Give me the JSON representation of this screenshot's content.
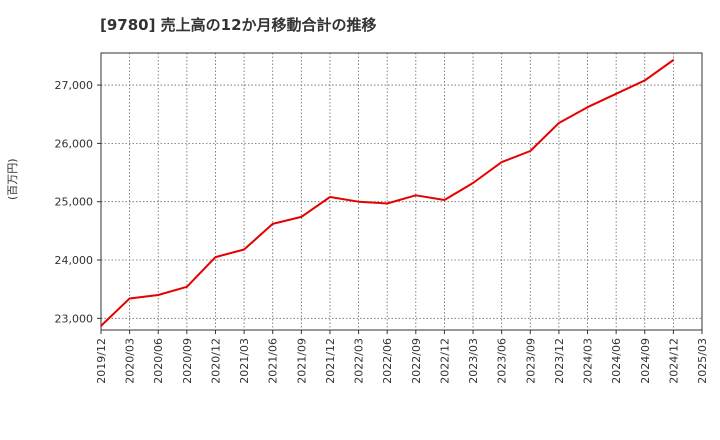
{
  "chart_data": {
    "type": "line",
    "title": "[9780]  売上高の12か月移動合計の推移",
    "xlabel": "",
    "ylabel": "(百万円)",
    "ylim": [
      22800,
      27550
    ],
    "yticks": [
      23000,
      24000,
      25000,
      26000,
      27000
    ],
    "ytick_labels": [
      "23,000",
      "24,000",
      "25,000",
      "26,000",
      "27,000"
    ],
    "xtick_labels": [
      "2019/12",
      "2020/03",
      "2020/06",
      "2020/09",
      "2020/12",
      "2021/03",
      "2021/06",
      "2021/09",
      "2021/12",
      "2022/03",
      "2022/06",
      "2022/09",
      "2022/12",
      "2023/03",
      "2023/06",
      "2023/09",
      "2023/12",
      "2024/03",
      "2024/06",
      "2024/09",
      "2024/12",
      "2025/03"
    ],
    "grid": true,
    "series": [
      {
        "name": "売上高(12か月移動合計)",
        "color": "#e60000",
        "x": [
          "2019/12",
          "2020/03",
          "2020/06",
          "2020/09",
          "2020/12",
          "2021/03",
          "2021/06",
          "2021/09",
          "2021/12",
          "2022/03",
          "2022/06",
          "2022/09",
          "2022/12",
          "2023/03",
          "2023/06",
          "2023/09",
          "2023/12",
          "2024/03",
          "2024/06",
          "2024/09",
          "2024/12"
        ],
        "values": [
          22870,
          23340,
          23400,
          23540,
          24050,
          24180,
          24620,
          24740,
          25080,
          25000,
          24970,
          25110,
          25030,
          25320,
          25680,
          25870,
          26350,
          26620,
          26850,
          27080,
          27430
        ]
      }
    ]
  }
}
